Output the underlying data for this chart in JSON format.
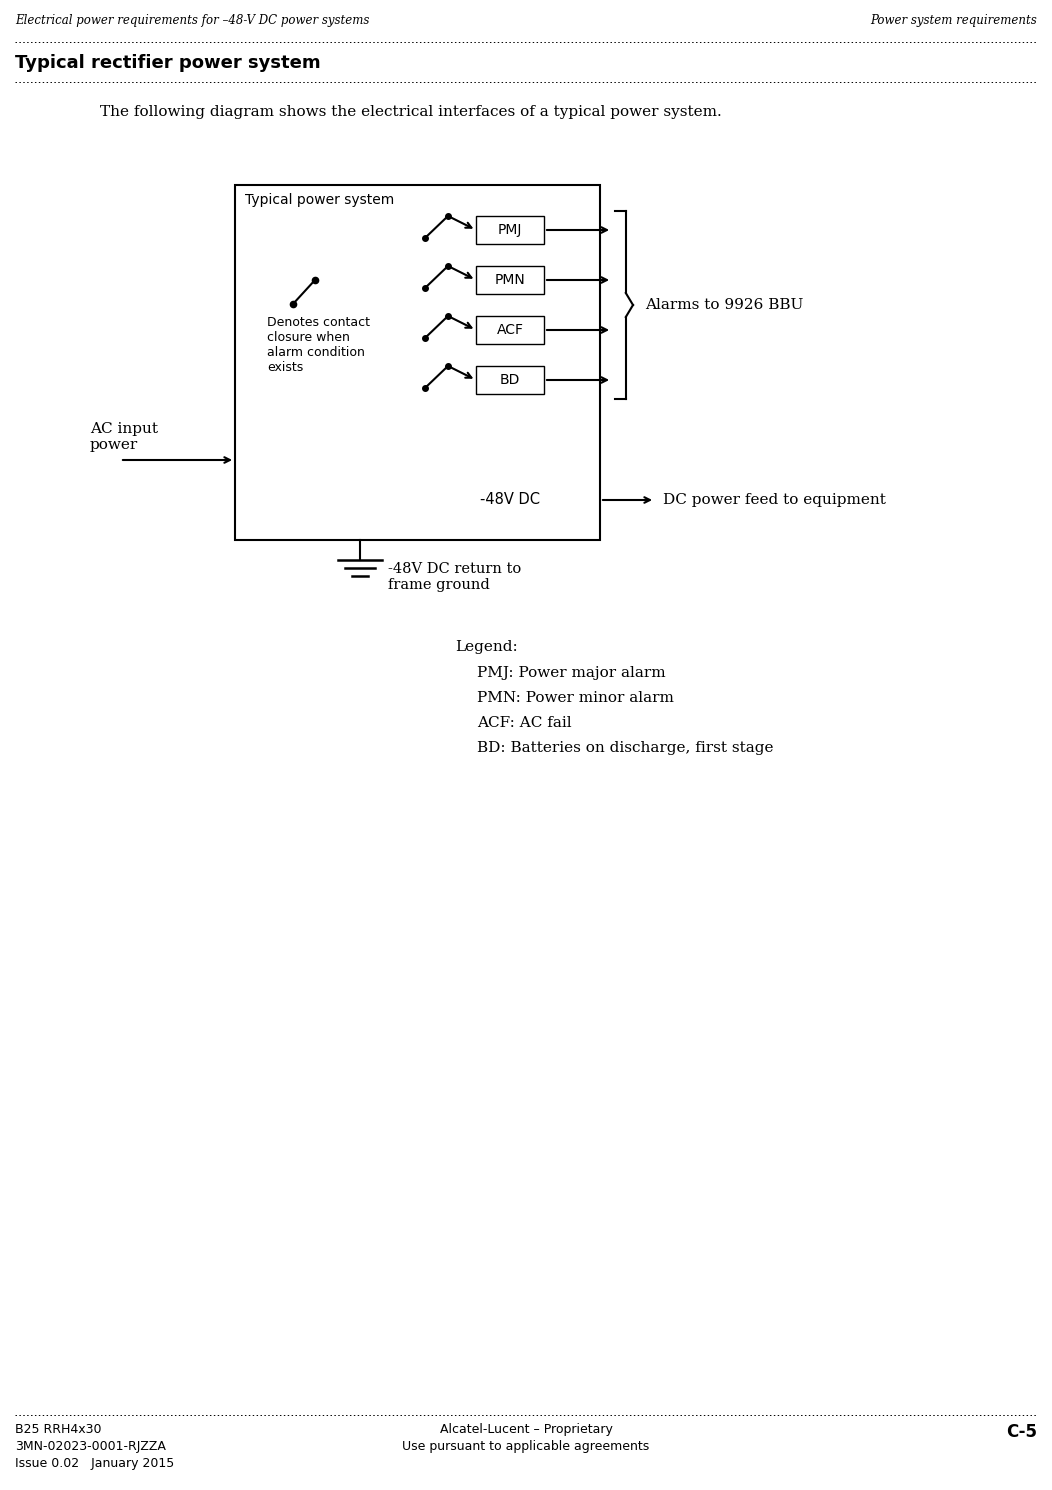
{
  "header_left": "Electrical power requirements for –48-V DC power systems",
  "header_right": "Power system requirements",
  "section_title": "Typical rectifier power system",
  "intro_text": "The following diagram shows the electrical interfaces of a typical power system.",
  "box_title": "Typical power system",
  "signals": [
    "PMJ",
    "PMN",
    "ACF",
    "BD"
  ],
  "alarms_label": "Alarms to 9926 BBU",
  "ac_input_label": "AC input\npower",
  "dc_output_label": "-48V DC",
  "dc_power_label": "DC power feed to equipment",
  "ground_label": "-48V DC return to\nframe ground",
  "denotes_label": "Denotes contact\nclosure when\nalarm condition\nexists",
  "legend_title": "Legend:",
  "legend_items": [
    "PMJ: Power major alarm",
    "PMN: Power minor alarm",
    "ACF: AC fail",
    "BD: Batteries on discharge, first stage"
  ],
  "footer_left_line1": "B25 RRH4x30",
  "footer_left_line2": "3MN-02023-0001-RJZZA",
  "footer_left_line3": "Issue 0.02   January 2015",
  "footer_center_line1": "Alcatel-Lucent – Proprietary",
  "footer_center_line2": "Use pursuant to applicable agreements",
  "footer_right": "C-5",
  "bg_color": "#ffffff",
  "text_color": "#000000"
}
